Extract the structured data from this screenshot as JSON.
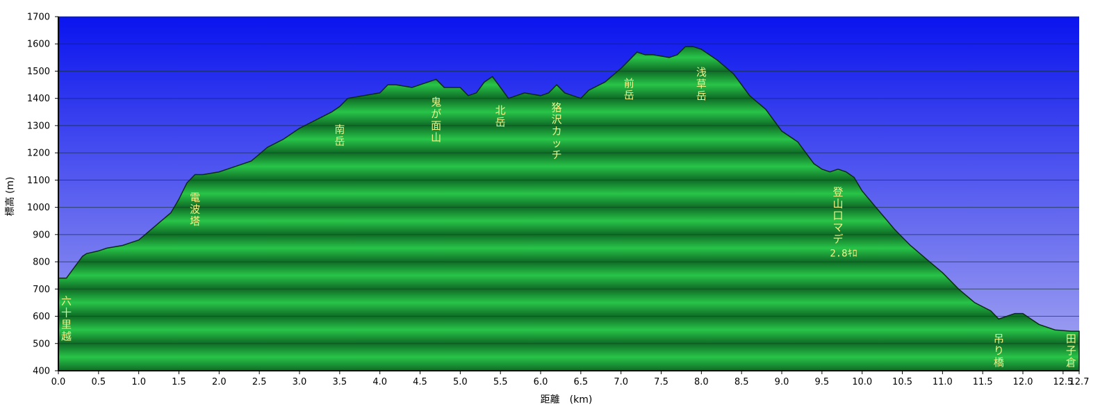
{
  "chart_data": {
    "type": "area",
    "title": "",
    "xlabel": "距離　(km)",
    "ylabel": "標高 (m)",
    "xlim": [
      0,
      12.7
    ],
    "ylim": [
      400,
      1700
    ],
    "x_ticks": [
      "0.0",
      "0.5",
      "1.0",
      "1.5",
      "2.0",
      "2.5",
      "3.0",
      "3.5",
      "4.0",
      "4.5",
      "5.0",
      "5.5",
      "6.0",
      "6.5",
      "7.0",
      "7.5",
      "8.0",
      "8.5",
      "9.0",
      "9.5",
      "10.0",
      "10.5",
      "11.0",
      "11.5",
      "12.0",
      "12.5",
      "12.7"
    ],
    "y_ticks": [
      "400",
      "500",
      "600",
      "700",
      "800",
      "900",
      "1000",
      "1100",
      "1200",
      "1300",
      "1400",
      "1500",
      "1600",
      "1700"
    ],
    "grid": true,
    "colors": {
      "sky_top": "#0a14ee",
      "sky_bottom": "#a9aaf0",
      "fill_light": "#28c448",
      "fill_dark": "#0f6b26",
      "outline": "#0d2a12",
      "label": "#f3f38a"
    },
    "x": [
      0.0,
      0.1,
      0.2,
      0.3,
      0.35,
      0.5,
      0.6,
      0.8,
      0.9,
      1.0,
      1.2,
      1.4,
      1.5,
      1.6,
      1.7,
      1.8,
      2.0,
      2.2,
      2.4,
      2.6,
      2.8,
      3.0,
      3.2,
      3.4,
      3.5,
      3.6,
      3.8,
      4.0,
      4.1,
      4.2,
      4.4,
      4.6,
      4.7,
      4.8,
      4.9,
      5.0,
      5.1,
      5.2,
      5.3,
      5.4,
      5.5,
      5.6,
      5.8,
      6.0,
      6.1,
      6.2,
      6.3,
      6.4,
      6.5,
      6.6,
      6.8,
      7.0,
      7.1,
      7.2,
      7.3,
      7.4,
      7.6,
      7.7,
      7.8,
      7.9,
      8.0,
      8.2,
      8.4,
      8.6,
      8.8,
      9.0,
      9.2,
      9.4,
      9.5,
      9.6,
      9.7,
      9.8,
      9.9,
      10.0,
      10.2,
      10.4,
      10.6,
      10.8,
      11.0,
      11.2,
      11.4,
      11.6,
      11.7,
      11.8,
      11.9,
      12.0,
      12.1,
      12.2,
      12.4,
      12.6,
      12.7
    ],
    "y": [
      740,
      740,
      780,
      820,
      830,
      840,
      850,
      860,
      870,
      880,
      930,
      980,
      1030,
      1090,
      1120,
      1120,
      1130,
      1150,
      1170,
      1220,
      1250,
      1290,
      1320,
      1350,
      1370,
      1400,
      1410,
      1420,
      1450,
      1450,
      1440,
      1460,
      1470,
      1440,
      1440,
      1440,
      1410,
      1420,
      1460,
      1480,
      1440,
      1400,
      1420,
      1410,
      1420,
      1450,
      1420,
      1410,
      1400,
      1430,
      1460,
      1510,
      1540,
      1570,
      1560,
      1560,
      1550,
      1560,
      1590,
      1590,
      1580,
      1540,
      1490,
      1410,
      1360,
      1280,
      1240,
      1160,
      1140,
      1130,
      1140,
      1130,
      1110,
      1060,
      990,
      920,
      860,
      810,
      760,
      700,
      650,
      620,
      590,
      600,
      610,
      610,
      590,
      570,
      550,
      545,
      545
    ],
    "peaks": [
      {
        "name": "六十里越",
        "km": 0.1
      },
      {
        "name": "電波塔",
        "km": 1.7
      },
      {
        "name": "南岳",
        "km": 3.5
      },
      {
        "name": "鬼が面山",
        "km": 4.7
      },
      {
        "name": "北岳",
        "km": 5.5
      },
      {
        "name": "狢沢カッチ",
        "km": 6.2
      },
      {
        "name": "前岳",
        "km": 7.1
      },
      {
        "name": "浅草岳",
        "km": 8.0
      },
      {
        "name": "登山口マデ",
        "km": 9.7,
        "sub": "2.8ｷﾛ"
      },
      {
        "name": "吊り橋",
        "km": 11.7
      },
      {
        "name": "田子倉",
        "km": 12.6
      }
    ]
  }
}
